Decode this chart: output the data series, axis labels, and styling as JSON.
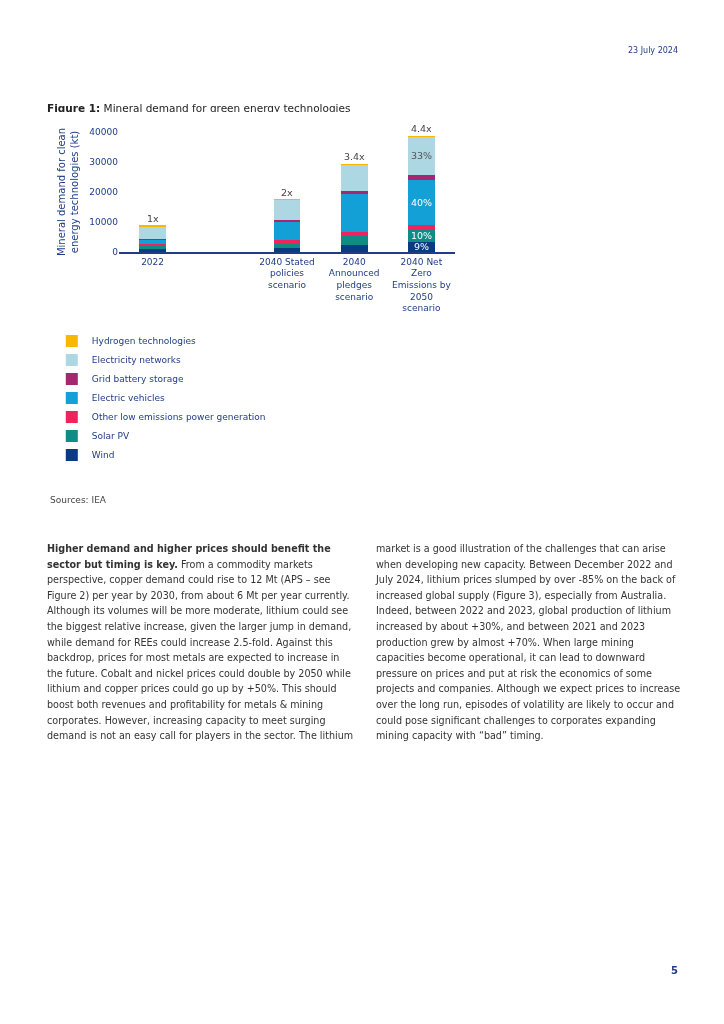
{
  "chart_data": {
    "type": "bar",
    "title": "Figure 1:",
    "subtitle": "Mineral demand for green energy technologies",
    "ylabel": "Mineral demand for clean energy technologies (kt)",
    "categories": [
      "2022",
      null,
      "2040 Stated policies scenario",
      "2040 Announced pledges scenario",
      "2040 Net Zero Emissions by 2050 scenario"
    ],
    "stacked": true,
    "legend": "bottom",
    "grid": false,
    "ylim": [
      0,
      40000
    ],
    "yticks": [
      0,
      10000,
      20000,
      30000,
      40000
    ],
    "series": [
      {
        "name": "Wind",
        "color": "#0a3a84",
        "values": [
          1000,
          null,
          1400,
          2500,
          3400
        ]
      },
      {
        "name": "Solar PV",
        "color": "#0f8c85",
        "values": [
          1300,
          null,
          1700,
          2700,
          3900
        ]
      },
      {
        "name": "Other low emissions power generation",
        "color": "#f0245c",
        "values": [
          400,
          null,
          1000,
          1400,
          1600
        ]
      },
      {
        "name": "Electric vehicles",
        "color": "#12a0d6",
        "values": [
          1300,
          null,
          6200,
          12700,
          15200
        ]
      },
      {
        "name": "Grid battery storage",
        "color": "#a3286f",
        "values": [
          300,
          null,
          500,
          900,
          1700
        ]
      },
      {
        "name": "Electricity networks",
        "color": "#acd7e3",
        "values": [
          4300,
          null,
          6600,
          9000,
          12700
        ]
      },
      {
        "name": "Hydrogen technologies",
        "color": "#f7b800",
        "values": [
          100,
          null,
          100,
          100,
          100
        ]
      }
    ],
    "annotations": [
      {
        "text": "1x",
        "x": "2022",
        "y": 8700
      },
      {
        "text": "2x",
        "x": "2040 Stated policies scenario",
        "y": 17500
      },
      {
        "text": "3.4x",
        "x": "2040 Announced pledges scenario",
        "y": 29300
      },
      {
        "text": "4.4x",
        "x": "2040 Net Zero Emissions by 2050 scenario",
        "y": 38600
      },
      {
        "text": "9%",
        "x": "2040 Net Zero Emissions by 2050 scenario",
        "y": 3400
      },
      {
        "text": "10%",
        "x": "2040 Net Zero Emissions by 2050 scenario",
        "y": 7300
      },
      {
        "text": "40%",
        "x": "2040 Net Zero Emissions by 2050 scenario",
        "y": 24100
      },
      {
        "text": "33%",
        "x": "2040 Net Zero Emissions by 2050 scenario",
        "y": 38500
      },
      "Sources: IEA",
      "23 July 2024",
      "Higher demand and higher prices should benefit the sector but timing is key.",
      "From a commodity markets perspective, copper demand could rise to 12 Mt (APS – see Figure 2) per year by 2030, from about 6 Mt per year currently. Although its volumes will be more moderate, lithium could see the biggest relative increase, given the larger jump in demand, while demand for REEs could increase 2.5-fold. Against this backdrop, prices for most metals are expected to increase in the future. Cobalt and nickel prices could double by 2050 while lithium and copper prices could go up by +50%. This should boost both revenues and profitability for metals & mining corporates. However, increasing capacity to meet surging demand is not an easy call for players in the sector. The lithium market is a good illustration of the challenges that can arise when developing new capacity. Between December 2022 and July 2024, lithium prices slumped by over -85% on the back of increased global supply (Figure 3), especially from Australia. Indeed, between 2022 and 2023, global production of lithium increased by about +30%, and between 2021 and 2023 production grew by almost +70%. When large mining capacities become operational, it can lead to downward pressure on prices and put at risk the economics of some projects and companies. Although we expect prices to increase over the long run, episodes of volatility are likely to occur and could pose significant challenges to corporates expanding mining capacity with “bad” timing.",
      "5"
    ]
  }
}
